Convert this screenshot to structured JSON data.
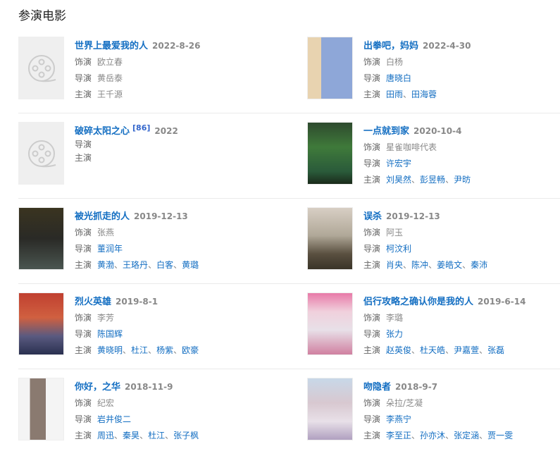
{
  "section_title": "参演电影",
  "labels": {
    "role": "饰演",
    "director": "导演",
    "cast": "主演"
  },
  "colors": {
    "link": "#136ec2",
    "date": "#888888",
    "text": "#666666"
  },
  "movies": [
    {
      "title": "世界上最爱我的人",
      "date": "2022-8-26",
      "poster": "film-reel-placeholder-icon",
      "role": [
        "欧立春"
      ],
      "director": [
        "黄岳泰"
      ],
      "cast": [
        "王千源"
      ],
      "director_linked": false,
      "cast_linked": false
    },
    {
      "title": "出拳吧，妈妈",
      "date": "2022-4-30",
      "poster": "linear-gradient(90deg,#e8d3b0 0 30%,#8ea7d8 30% 100%)",
      "role": [
        "白杨"
      ],
      "director": [
        "唐晓白"
      ],
      "cast": [
        "田雨",
        "田海蓉"
      ],
      "director_linked": true,
      "cast_linked": true
    },
    {
      "title": "破碎太阳之心",
      "sup": "[86]",
      "date": "2022",
      "poster": "film-reel-placeholder-icon",
      "role": [],
      "director": [],
      "cast": [],
      "tight": true
    },
    {
      "title": "一点就到家",
      "date": "2020-10-4",
      "poster": "linear-gradient(180deg,#2e4a2e 0,#3f7a3a 40%,#2a5a3a 80%,#1a2a1a 100%)",
      "role": [
        "星雀咖啡代表"
      ],
      "director": [
        "许宏宇"
      ],
      "cast": [
        "刘昊然",
        "彭昱畅",
        "尹昉"
      ],
      "director_linked": true,
      "cast_linked": true
    },
    {
      "title": "被光抓走的人",
      "date": "2019-12-13",
      "poster": "linear-gradient(180deg,#3a3420 0,#2a2a26 50%,#4a5550 100%)",
      "role": [
        "张燕"
      ],
      "director": [
        "董润年"
      ],
      "cast": [
        "黄渤",
        "王珞丹",
        "白客",
        "黄璐"
      ],
      "director_linked": true,
      "cast_linked": true
    },
    {
      "title": "误杀",
      "date": "2019-12-13",
      "poster": "linear-gradient(180deg,#d8cfc4 0,#b0a898 45%,#5a5040 75%,#3a3428 100%)",
      "role": [
        "阿玉"
      ],
      "director": [
        "柯汶利"
      ],
      "cast": [
        "肖央",
        "陈冲",
        "姜皓文",
        "秦沛"
      ],
      "director_linked": true,
      "cast_linked": true
    },
    {
      "title": "烈火英雄",
      "date": "2019-8-1",
      "poster": "linear-gradient(180deg,#c04030 0,#d06040 40%,#5a5a80 70%,#2a3050 100%)",
      "role": [
        "李芳"
      ],
      "director": [
        "陈国辉"
      ],
      "cast": [
        "黄晓明",
        "杜江",
        "杨紫",
        "欧豪"
      ],
      "director_linked": true,
      "cast_linked": true
    },
    {
      "title": "侣行攻略之确认你是我的人",
      "date": "2019-6-14",
      "poster": "linear-gradient(180deg,#e87aa8 0,#f0d0dc 30%,#e8e0e8 60%,#d080a0 100%)",
      "role": [
        "李璐"
      ],
      "director": [
        "张力"
      ],
      "cast": [
        "赵英俊",
        "杜天皓",
        "尹嘉萱",
        "张磊"
      ],
      "director_linked": true,
      "cast_linked": true
    },
    {
      "title": "你好，之华",
      "date": "2018-11-9",
      "poster": "linear-gradient(90deg,#f4f4f4 0 25%,#8a7a70 25% 60%,#f4f4f4 60% 100%)",
      "role": [
        "纪宏"
      ],
      "director": [
        "岩井俊二"
      ],
      "cast": [
        "周迅",
        "秦昊",
        "杜江",
        "张子枫"
      ],
      "director_linked": true,
      "cast_linked": true
    },
    {
      "title": "吻隐者",
      "date": "2018-9-7",
      "poster": "linear-gradient(180deg,#c8d8e8 0,#d8c8d0 40%,#e8e0e8 70%,#b0a0c0 100%)",
      "role": [
        "朵拉/芝凝"
      ],
      "director": [
        "李燕宁"
      ],
      "cast": [
        "李至正",
        "孙亦沐",
        "张定涵",
        "贾一雯"
      ],
      "director_linked": true,
      "cast_linked": true
    }
  ]
}
